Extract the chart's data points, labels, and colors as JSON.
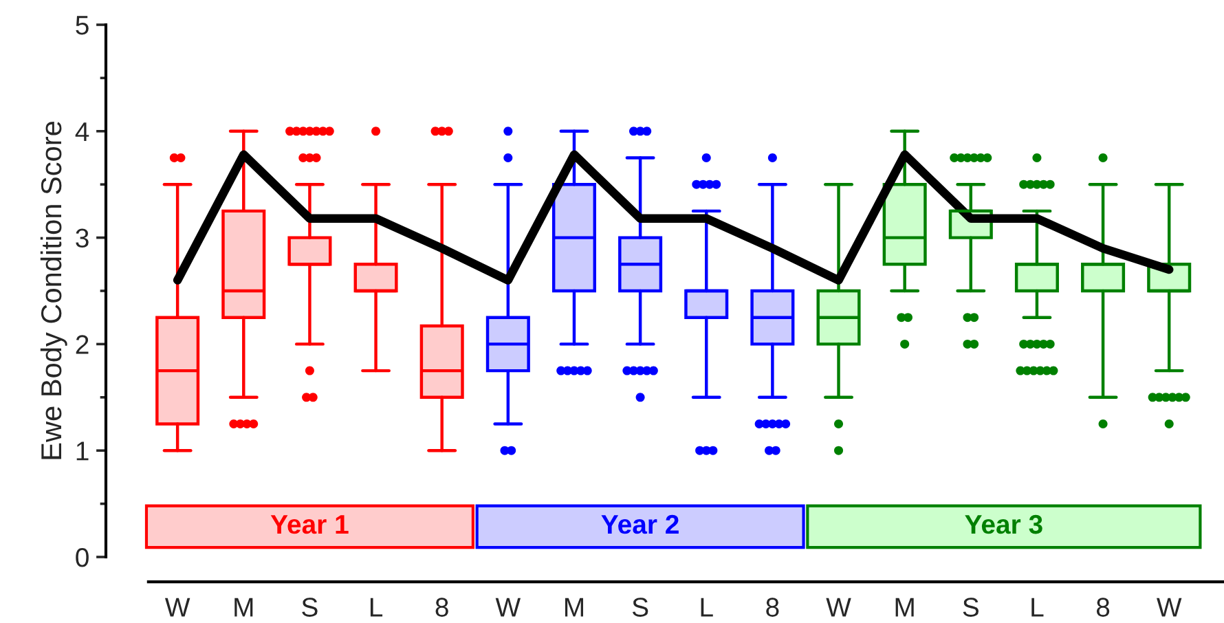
{
  "chart_data": {
    "type": "box",
    "ylabel": "Ewe Body Condition Score",
    "categories": [
      "W",
      "M",
      "S",
      "L",
      "8",
      "W",
      "M",
      "S",
      "L",
      "8",
      "W",
      "M",
      "S",
      "L",
      "8",
      "W"
    ],
    "ylim": [
      0,
      5
    ],
    "yticks": [
      0,
      1,
      2,
      3,
      4,
      5
    ],
    "grid": false,
    "legend": false,
    "series": [
      {
        "name": "Year 1",
        "color": "#ff0000",
        "boxes": [
          {
            "low": 1,
            "q1": 1.25,
            "median": 1.75,
            "q3": 2.25,
            "high": 3.5,
            "outliers": [
              3.75,
              3.75
            ]
          },
          {
            "low": 1.5,
            "q1": 2.25,
            "median": 2.5,
            "q3": 3.25,
            "high": 4,
            "outliers": [
              1.25,
              1.25,
              1.25,
              1.25
            ]
          },
          {
            "low": 2,
            "q1": 2.75,
            "median": 2.75,
            "q3": 3,
            "high": 3.5,
            "outliers": [
              4,
              4,
              4,
              4,
              4,
              4,
              4,
              3.75,
              3.75,
              3.75,
              1.75,
              1.5,
              1.5
            ]
          },
          {
            "low": 1.75,
            "q1": 2.5,
            "median": 2.5,
            "q3": 2.75,
            "high": 3.5,
            "outliers": [
              4
            ]
          },
          {
            "low": 1,
            "q1": 1.5,
            "median": 1.75,
            "q3": 2.17,
            "high": 3.5,
            "outliers": [
              4,
              4,
              4
            ]
          },
          null,
          null,
          null,
          null,
          null,
          null,
          null,
          null,
          null,
          null,
          null
        ]
      },
      {
        "name": "Year 2",
        "color": "#0000ff",
        "boxes": [
          null,
          null,
          null,
          null,
          null,
          {
            "low": 1.25,
            "q1": 1.75,
            "median": 2,
            "q3": 2.25,
            "high": 3.5,
            "outliers": [
              4,
              3.75,
              1,
              1
            ]
          },
          {
            "low": 2,
            "q1": 2.5,
            "median": 3,
            "q3": 3.5,
            "high": 4,
            "outliers": [
              1.75,
              1.75,
              1.75,
              1.75,
              1.75
            ]
          },
          {
            "low": 2,
            "q1": 2.5,
            "median": 2.75,
            "q3": 3,
            "high": 3.75,
            "outliers": [
              4,
              4,
              4,
              1.75,
              1.75,
              1.75,
              1.75,
              1.75,
              1.5
            ]
          },
          {
            "low": 1.5,
            "q1": 2.25,
            "median": 2.5,
            "q3": 2.5,
            "high": 3.25,
            "outliers": [
              3.75,
              3.5,
              3.5,
              3.5,
              3.5,
              1,
              1,
              1
            ]
          },
          {
            "low": 1.5,
            "q1": 2,
            "median": 2.25,
            "q3": 2.5,
            "high": 3.5,
            "outliers": [
              3.75,
              1.25,
              1.25,
              1.25,
              1.25,
              1.25,
              1,
              1
            ]
          },
          null,
          null,
          null,
          null,
          null,
          null
        ]
      },
      {
        "name": "Year 3",
        "color": "#008000",
        "boxes": [
          null,
          null,
          null,
          null,
          null,
          null,
          null,
          null,
          null,
          null,
          {
            "low": 1.5,
            "q1": 2,
            "median": 2.25,
            "q3": 2.5,
            "high": 3.5,
            "outliers": [
              1.25,
              1
            ]
          },
          {
            "low": 2.5,
            "q1": 2.75,
            "median": 3,
            "q3": 3.5,
            "high": 4,
            "outliers": [
              2.25,
              2.25,
              2
            ]
          },
          {
            "low": 2.5,
            "q1": 3,
            "median": 3.25,
            "q3": 3.25,
            "high": 3.5,
            "outliers": [
              3.75,
              3.75,
              3.75,
              3.75,
              3.75,
              3.75,
              2.25,
              2.25,
              2,
              2
            ]
          },
          {
            "low": 2.25,
            "q1": 2.5,
            "median": 2.75,
            "q3": 2.75,
            "high": 3.25,
            "outliers": [
              3.75,
              3.5,
              3.5,
              3.5,
              3.5,
              3.5,
              2,
              2,
              2,
              2,
              2,
              1.75,
              1.75,
              1.75,
              1.75,
              1.75,
              1.75
            ]
          },
          {
            "low": 1.5,
            "q1": 2.5,
            "median": 2.75,
            "q3": 2.75,
            "high": 3.5,
            "outliers": [
              3.75,
              1.25
            ]
          },
          {
            "low": 1.75,
            "q1": 2.5,
            "median": 2.5,
            "q3": 2.75,
            "high": 3.5,
            "outliers": [
              1.5,
              1.5,
              1.5,
              1.5,
              1.5,
              1.5,
              1.25
            ]
          }
        ]
      },
      {
        "type": "line",
        "color": "#000000",
        "values": [
          2.6,
          3.78,
          3.18,
          3.18,
          2.9,
          2.6,
          3.78,
          3.18,
          3.18,
          2.9,
          2.6,
          3.78,
          3.18,
          3.18,
          2.9,
          2.7
        ]
      }
    ]
  }
}
